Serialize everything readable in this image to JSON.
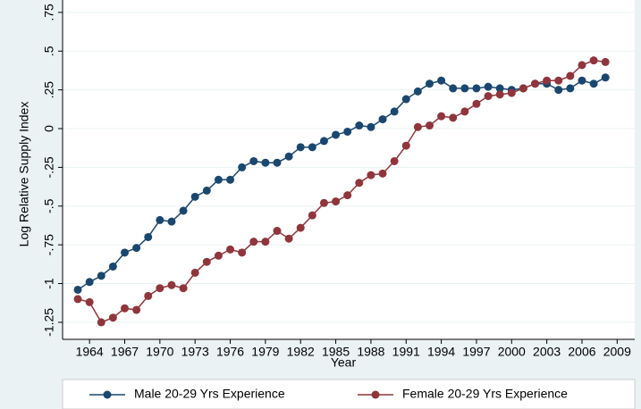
{
  "chart_data": {
    "type": "line",
    "x_label": "Year",
    "y_label": "Log Relative Supply Index",
    "x": [
      1963,
      1964,
      1965,
      1966,
      1967,
      1968,
      1969,
      1970,
      1971,
      1972,
      1973,
      1974,
      1975,
      1976,
      1977,
      1978,
      1979,
      1980,
      1981,
      1982,
      1983,
      1984,
      1985,
      1986,
      1987,
      1988,
      1989,
      1990,
      1991,
      1992,
      1993,
      1994,
      1995,
      1996,
      1997,
      1998,
      1999,
      2000,
      2001,
      2002,
      2003,
      2004,
      2005,
      2006,
      2007,
      2008
    ],
    "series": [
      {
        "name": "Male 20-29 Yrs Experience",
        "color": "#1a476f",
        "values": [
          -1.04,
          -0.99,
          -0.95,
          -0.89,
          -0.8,
          -0.77,
          -0.7,
          -0.59,
          -0.6,
          -0.53,
          -0.44,
          -0.4,
          -0.33,
          -0.33,
          -0.25,
          -0.21,
          -0.22,
          -0.22,
          -0.18,
          -0.12,
          -0.12,
          -0.08,
          -0.04,
          -0.02,
          0.02,
          0.01,
          0.06,
          0.11,
          0.19,
          0.24,
          0.29,
          0.31,
          0.26,
          0.26,
          0.26,
          0.27,
          0.26,
          0.25,
          0.26,
          0.29,
          0.29,
          0.25,
          0.26,
          0.31,
          0.29,
          0.33
        ]
      },
      {
        "name": "Female 20-29 Yrs Experience",
        "color": "#90353b",
        "values": [
          -1.1,
          -1.12,
          -1.25,
          -1.22,
          -1.16,
          -1.17,
          -1.08,
          -1.03,
          -1.01,
          -1.03,
          -0.93,
          -0.86,
          -0.82,
          -0.78,
          -0.8,
          -0.73,
          -0.73,
          -0.66,
          -0.71,
          -0.64,
          -0.56,
          -0.48,
          -0.47,
          -0.43,
          -0.35,
          -0.3,
          -0.29,
          -0.21,
          -0.11,
          0.01,
          0.02,
          0.08,
          0.07,
          0.11,
          0.16,
          0.21,
          0.22,
          0.23,
          0.26,
          0.29,
          0.31,
          0.31,
          0.34,
          0.41,
          0.44,
          0.43
        ]
      }
    ],
    "xlim": [
      1961.7,
      2010.5
    ],
    "xticks": [
      1964,
      1967,
      1970,
      1973,
      1976,
      1979,
      1982,
      1985,
      1988,
      1991,
      1994,
      1997,
      2000,
      2003,
      2006,
      2009
    ],
    "ylim": [
      -1.36,
      0.83
    ],
    "yticks": [
      -1.25,
      -1,
      {
        "value": -0.75,
        "label": "-.75"
      },
      {
        "value": -0.5,
        "label": "-.5"
      },
      {
        "value": -0.25,
        "label": "-.25"
      },
      0,
      {
        "value": 0.25,
        "label": ".25"
      },
      {
        "value": 0.5,
        "label": ".5"
      },
      {
        "value": 0.75,
        "label": ".75"
      }
    ],
    "grid": true,
    "legend": "bottom"
  }
}
